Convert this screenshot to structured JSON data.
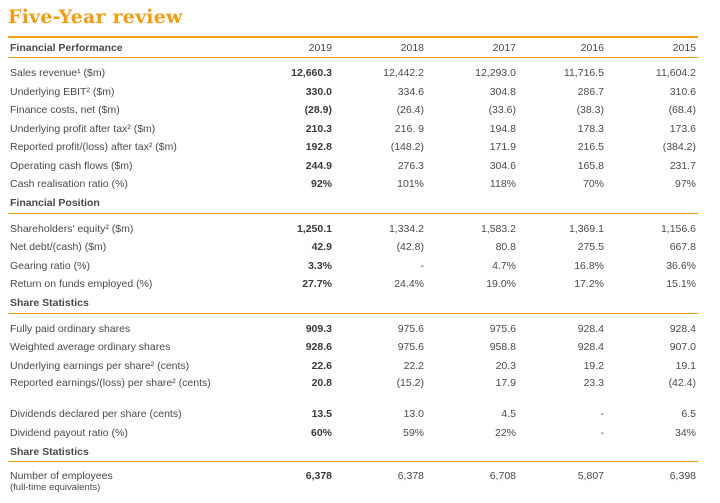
{
  "title": "Five-Year review",
  "years": [
    "2019",
    "2018",
    "2017",
    "2016",
    "2015"
  ],
  "sections": [
    {
      "heading": "Financial Performance",
      "show_years": true,
      "rows": [
        {
          "label": "Sales revenue¹ ($m)",
          "values": [
            "12,660.3",
            "12,442.2",
            "12,293.0",
            "11,716.5",
            "11,604.2"
          ]
        },
        {
          "label": "Underlying EBIT² ($m)",
          "values": [
            "330.0",
            "334.6",
            "304.8",
            "286.7",
            "310.6"
          ]
        },
        {
          "label": "Finance costs, net ($m)",
          "values": [
            "(28.9)",
            "(26.4)",
            "(33.6)",
            "(38.3)",
            "(68.4)"
          ]
        },
        {
          "label": "Underlying profit after tax² ($m)",
          "values": [
            "210.3",
            "216. 9",
            "194.8",
            "178.3",
            "173.6"
          ]
        },
        {
          "label": "Reported profit/(loss) after tax² ($m)",
          "values": [
            "192.8",
            "(148.2)",
            "171.9",
            "216.5",
            "(384.2)"
          ]
        },
        {
          "label": "Operating cash flows ($m)",
          "values": [
            "244.9",
            "276.3",
            "304.6",
            "165.8",
            "231.7"
          ]
        },
        {
          "label": "Cash realisation ratio (%)",
          "values": [
            "92%",
            "101%",
            "118%",
            "70%",
            "97%"
          ]
        }
      ]
    },
    {
      "heading": "Financial Position",
      "show_years": false,
      "rows": [
        {
          "label": "Shareholders' equity² ($m)",
          "values": [
            "1,250.1",
            "1,334.2",
            "1,583.2",
            "1,369.1",
            "1,156.6"
          ]
        },
        {
          "label": "Net debt/(cash) ($m)",
          "values": [
            "42.9",
            "(42.8)",
            "80.8",
            "275.5",
            "667.8"
          ]
        },
        {
          "label": "Gearing ratio (%)",
          "values": [
            "3.3%",
            "-",
            "4.7%",
            "16.8%",
            "36.6%"
          ]
        },
        {
          "label": "Return on funds employed (%)",
          "values": [
            "27.7%",
            "24.4%",
            "19.0%",
            "17.2%",
            "15.1%"
          ]
        }
      ]
    },
    {
      "heading": "Share Statistics",
      "show_years": false,
      "rows": [
        {
          "label": "Fully paid ordinary shares",
          "values": [
            "909.3",
            "975.6",
            "975.6",
            "928.4",
            "928.4"
          ]
        },
        {
          "label": "Weighted average ordinary shares",
          "values": [
            "928.6",
            "975.6",
            "958.8",
            "928.4",
            "907.0"
          ]
        },
        {
          "label": "Underlying earnings per share² (cents)",
          "values": [
            "22.6",
            "22.2",
            "20.3",
            "19.2",
            "19.1"
          ]
        },
        {
          "label": "Reported earnings/(loss) per share² (cents)",
          "values": [
            "20.8",
            "(15.2)",
            "17.9",
            "23.3",
            "(42.4)"
          ],
          "tall": true
        },
        {
          "label": "Dividends declared per share (cents)",
          "values": [
            "13.5",
            "13.0",
            "4.5",
            "-",
            "6.5"
          ]
        },
        {
          "label": "Dividend payout ratio (%)",
          "values": [
            "60%",
            "59%",
            "22%",
            "-",
            "34%"
          ]
        }
      ]
    },
    {
      "heading": "Share Statistics",
      "show_years": false,
      "rows": []
    }
  ],
  "footer": {
    "label": "Number of employees",
    "sublabel": "(full-time equivalents)",
    "values": [
      "6,378",
      "6,378",
      "6,708",
      "5,807",
      "6,398"
    ]
  },
  "colors": {
    "accent": "#f39c12",
    "text": "#4a4a4a"
  }
}
